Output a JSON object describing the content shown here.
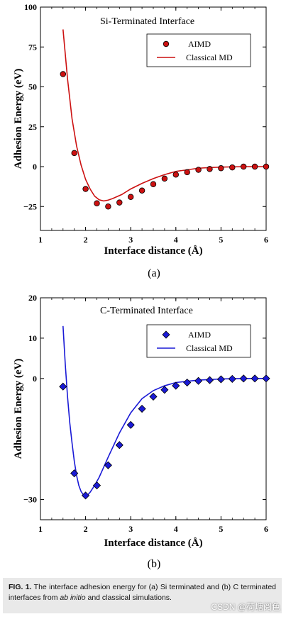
{
  "chart_data": [
    {
      "type": "scatter",
      "panel_label": "(a)",
      "title": "Si-Terminated Interface",
      "xlabel": "Interface distance (Å)",
      "ylabel": "Adhesion Energy (eV)",
      "xlim": [
        1,
        6
      ],
      "ylim": [
        -40,
        100
      ],
      "xticks": [
        1,
        2,
        3,
        4,
        5,
        6
      ],
      "yticks": [
        -25,
        0,
        25,
        50,
        75,
        100
      ],
      "legend_position": "top-right",
      "color": "#cc1111",
      "series": [
        {
          "name": "AIMD",
          "kind": "markers",
          "marker": "circle",
          "x": [
            1.5,
            1.75,
            2.0,
            2.25,
            2.5,
            2.75,
            3.0,
            3.25,
            3.5,
            3.75,
            4.0,
            4.25,
            4.5,
            4.75,
            5.0,
            5.25,
            5.5,
            5.75,
            6.0
          ],
          "y": [
            58,
            8.5,
            -14,
            -23,
            -25,
            -22.5,
            -19,
            -15,
            -11,
            -7.5,
            -5,
            -3.5,
            -2,
            -1.5,
            -1,
            -0.5,
            0,
            0,
            0
          ]
        },
        {
          "name": "Classical MD",
          "kind": "line",
          "x": [
            1.5,
            1.6,
            1.7,
            1.8,
            1.9,
            2.0,
            2.1,
            2.2,
            2.3,
            2.4,
            2.5,
            2.6,
            2.8,
            3.0,
            3.25,
            3.5,
            3.75,
            4.0,
            4.25,
            4.5,
            4.75,
            5.0,
            5.5,
            6.0
          ],
          "y": [
            86,
            55,
            30,
            13,
            1,
            -8,
            -14,
            -18.5,
            -20.8,
            -21.5,
            -21,
            -20,
            -17.5,
            -14,
            -10.5,
            -7.5,
            -5,
            -3,
            -2,
            -1,
            -0.6,
            -0.3,
            0,
            0
          ]
        }
      ]
    },
    {
      "type": "scatter",
      "panel_label": "(b)",
      "title": "C-Terminated Interface",
      "xlabel": "Interface distance (Å)",
      "ylabel": "Adhesion Energy (eV)",
      "xlim": [
        1,
        6
      ],
      "ylim": [
        -35,
        20
      ],
      "xticks": [
        1,
        2,
        3,
        4,
        5,
        6
      ],
      "yticks": [
        -30,
        0,
        10,
        20
      ],
      "legend_position": "top-right",
      "color": "#1a1ad6",
      "series": [
        {
          "name": "AIMD",
          "kind": "markers",
          "marker": "diamond",
          "x": [
            1.5,
            1.75,
            2.0,
            2.25,
            2.5,
            2.75,
            3.0,
            3.25,
            3.5,
            3.75,
            4.0,
            4.25,
            4.5,
            4.75,
            5.0,
            5.25,
            5.5,
            5.75,
            6.0
          ],
          "y": [
            -2,
            -23.5,
            -29,
            -26.5,
            -21.5,
            -16.5,
            -11.5,
            -7.5,
            -4.5,
            -2.8,
            -1.8,
            -1,
            -0.6,
            -0.4,
            -0.2,
            -0.1,
            0,
            0,
            0
          ]
        },
        {
          "name": "Classical MD",
          "kind": "line",
          "x": [
            1.5,
            1.55,
            1.6,
            1.65,
            1.7,
            1.75,
            1.8,
            1.85,
            1.9,
            1.95,
            2.0,
            2.05,
            2.1,
            2.2,
            2.3,
            2.4,
            2.5,
            2.75,
            3.0,
            3.25,
            3.5,
            3.75,
            4.0,
            4.5,
            5.0,
            5.5,
            6.0
          ],
          "y": [
            13,
            3.5,
            -4.5,
            -11,
            -16,
            -20.5,
            -24,
            -26.5,
            -28,
            -28.8,
            -29,
            -28.8,
            -28.2,
            -26.5,
            -24.5,
            -22,
            -19.5,
            -13.5,
            -8.5,
            -5,
            -3,
            -1.8,
            -1,
            -0.4,
            -0.1,
            0,
            0
          ]
        }
      ]
    }
  ],
  "caption": {
    "fig_label": "FIG. 1.",
    "text_before": " The interface adhesion energy for (a) Si terminated and (b) C terminated interfaces from ",
    "text_italic": "ab initio",
    "text_after": " and classical simulations."
  },
  "watermark": "CSDN @荷塘阅色"
}
